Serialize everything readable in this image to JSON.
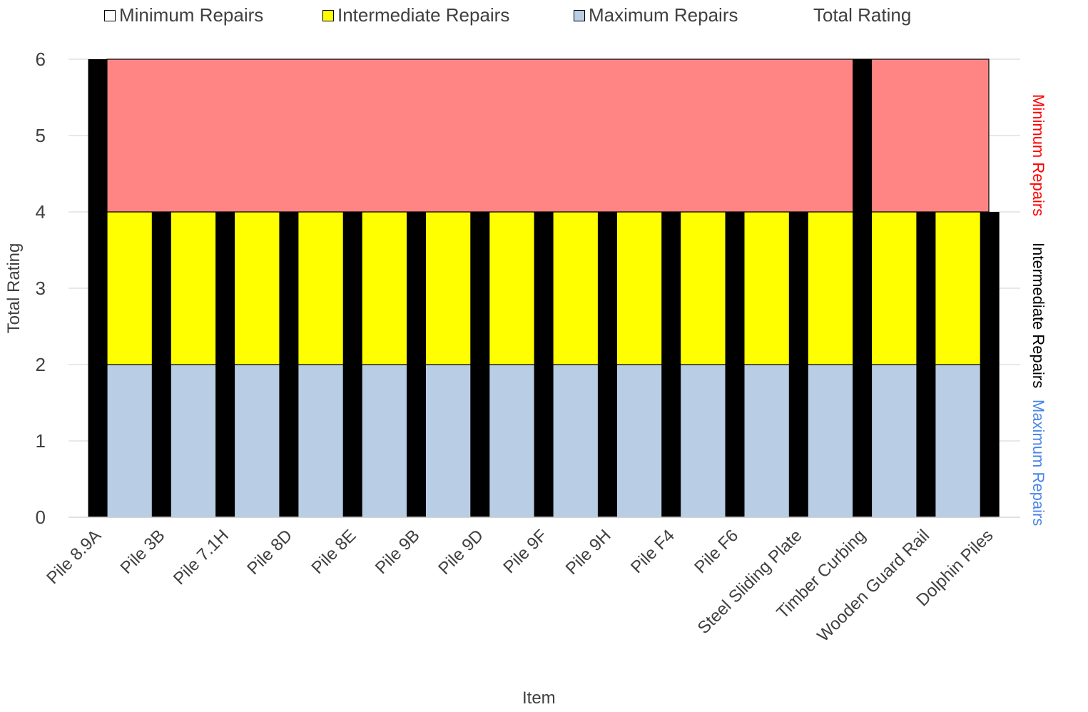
{
  "legend": {
    "minimum": "Minimum Repairs",
    "intermediate": "Intermediate Repairs",
    "maximum": "Maximum Repairs",
    "total": "Total Rating"
  },
  "zones": {
    "minimum": [
      "Minimum",
      "Repairs"
    ],
    "intermediate": [
      "Intermediate",
      "Repairs"
    ],
    "maximum": [
      "Maximum",
      "Repairs"
    ]
  },
  "colors": {
    "minimum_fill": "#ff8585",
    "intermediate_fill": "#ffff00",
    "maximum_fill": "#b9cde4",
    "total_bar": "#000000",
    "minimum_label": "#ff0000",
    "intermediate_label": "#000000",
    "maximum_label": "#4a86e8",
    "grid": "#d9d9d9"
  },
  "chart_data": {
    "type": "bar",
    "xlabel": "Item",
    "ylabel": "Total Rating",
    "ylim": [
      0,
      6
    ],
    "yticks": [
      0,
      1,
      2,
      3,
      4,
      5,
      6
    ],
    "categories": [
      "Pile 8.9A",
      "Pile 3B",
      "Pile 7.1H",
      "Pile 8D",
      "Pile 8E",
      "Pile 9B",
      "Pile 9D",
      "Pile 9F",
      "Pile 9H",
      "Pile F4",
      "Pile F6",
      "Steel Sliding Plate",
      "Timber Curbing",
      "Wooden Guard Rail",
      "Dolphin Piles"
    ],
    "bands": [
      {
        "name": "Maximum Repairs",
        "from": 0,
        "to": 2
      },
      {
        "name": "Intermediate Repairs",
        "from": 2,
        "to": 4
      },
      {
        "name": "Minimum Repairs",
        "from": 4,
        "to": 6
      }
    ],
    "series": [
      {
        "name": "Total Rating",
        "values": [
          6,
          4,
          4,
          4,
          4,
          4,
          4,
          4,
          4,
          4,
          4,
          4,
          6,
          4,
          4
        ]
      }
    ],
    "legend_position": "top",
    "grid": true
  }
}
